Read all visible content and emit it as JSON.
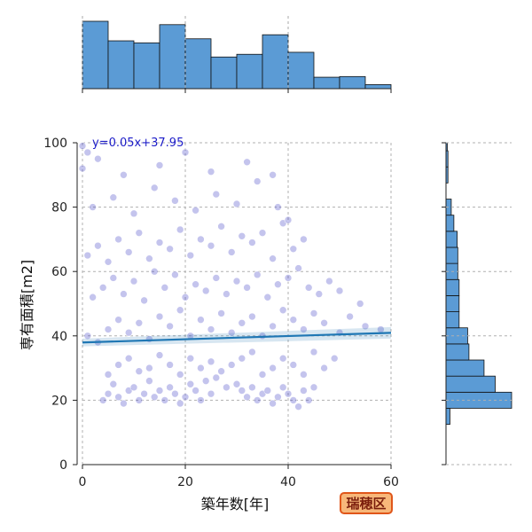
{
  "chart_data": {
    "type": "scatter",
    "xlabel": "築年数[年]",
    "ylabel": "専有面積[m2]",
    "xlim": [
      0,
      60
    ],
    "ylim": [
      0,
      100
    ],
    "xticks": [
      0,
      20,
      40,
      60
    ],
    "yticks": [
      0,
      20,
      40,
      60,
      80,
      100
    ],
    "grid": true,
    "regression": {
      "equation": "y=0.05x+37.95",
      "slope": 0.05,
      "intercept": 37.95
    },
    "badge": "瑞穂区",
    "colors": {
      "points": "#3b3bc4",
      "regression": "#1f77b4",
      "histogram": "#5b9bd5",
      "badge_bg": "#f7b77a",
      "badge_border": "#e0561a"
    },
    "x_histogram": {
      "bin_edges": [
        0,
        5,
        10,
        15,
        20,
        25,
        30,
        35,
        40,
        45,
        50,
        55,
        60
      ],
      "relative_heights": [
        1.0,
        0.71,
        0.68,
        0.95,
        0.74,
        0.47,
        0.51,
        0.8,
        0.54,
        0.17,
        0.18,
        0.06,
        0.06
      ]
    },
    "y_histogram": {
      "bin_edges": [
        12.5,
        17.5,
        22.5,
        27.5,
        32.5,
        37.5,
        42.5,
        47.5,
        52.5,
        57.5,
        62.5,
        67.5,
        72.5,
        77.5,
        82.5,
        87.5,
        92.5,
        97.5,
        100
      ],
      "relative_heights": [
        0.06,
        1.0,
        0.75,
        0.58,
        0.35,
        0.33,
        0.2,
        0.2,
        0.2,
        0.18,
        0.18,
        0.17,
        0.12,
        0.08,
        0.0,
        0.03,
        0.03,
        0.02
      ]
    },
    "points": [
      [
        4,
        20
      ],
      [
        5,
        22
      ],
      [
        6,
        25
      ],
      [
        7,
        21
      ],
      [
        8,
        19
      ],
      [
        9,
        23
      ],
      [
        10,
        24
      ],
      [
        11,
        20
      ],
      [
        12,
        22
      ],
      [
        13,
        26
      ],
      [
        14,
        21
      ],
      [
        15,
        23
      ],
      [
        16,
        20
      ],
      [
        17,
        24
      ],
      [
        18,
        22
      ],
      [
        19,
        19
      ],
      [
        20,
        21
      ],
      [
        21,
        25
      ],
      [
        22,
        23
      ],
      [
        23,
        20
      ],
      [
        24,
        26
      ],
      [
        25,
        22
      ],
      [
        26,
        27
      ],
      [
        28,
        24
      ],
      [
        30,
        25
      ],
      [
        31,
        23
      ],
      [
        32,
        21
      ],
      [
        33,
        24
      ],
      [
        34,
        20
      ],
      [
        35,
        22
      ],
      [
        36,
        23
      ],
      [
        37,
        19
      ],
      [
        38,
        21
      ],
      [
        39,
        24
      ],
      [
        40,
        22
      ],
      [
        41,
        20
      ],
      [
        42,
        18
      ],
      [
        43,
        23
      ],
      [
        44,
        20
      ],
      [
        45,
        24
      ],
      [
        5,
        28
      ],
      [
        7,
        31
      ],
      [
        9,
        33
      ],
      [
        11,
        29
      ],
      [
        13,
        30
      ],
      [
        15,
        34
      ],
      [
        17,
        31
      ],
      [
        19,
        28
      ],
      [
        21,
        33
      ],
      [
        23,
        30
      ],
      [
        25,
        32
      ],
      [
        27,
        29
      ],
      [
        29,
        31
      ],
      [
        31,
        33
      ],
      [
        33,
        35
      ],
      [
        35,
        28
      ],
      [
        37,
        30
      ],
      [
        39,
        33
      ],
      [
        41,
        31
      ],
      [
        43,
        28
      ],
      [
        45,
        35
      ],
      [
        47,
        30
      ],
      [
        49,
        33
      ],
      [
        1,
        40
      ],
      [
        3,
        38
      ],
      [
        5,
        42
      ],
      [
        7,
        45
      ],
      [
        9,
        41
      ],
      [
        11,
        44
      ],
      [
        13,
        39
      ],
      [
        15,
        46
      ],
      [
        17,
        43
      ],
      [
        19,
        48
      ],
      [
        21,
        40
      ],
      [
        23,
        45
      ],
      [
        25,
        42
      ],
      [
        27,
        47
      ],
      [
        29,
        41
      ],
      [
        31,
        44
      ],
      [
        33,
        46
      ],
      [
        35,
        40
      ],
      [
        37,
        43
      ],
      [
        39,
        48
      ],
      [
        41,
        45
      ],
      [
        43,
        42
      ],
      [
        45,
        47
      ],
      [
        47,
        44
      ],
      [
        50,
        41
      ],
      [
        52,
        46
      ],
      [
        55,
        43
      ],
      [
        58,
        42
      ],
      [
        2,
        52
      ],
      [
        4,
        55
      ],
      [
        6,
        58
      ],
      [
        8,
        53
      ],
      [
        10,
        57
      ],
      [
        12,
        51
      ],
      [
        14,
        60
      ],
      [
        16,
        55
      ],
      [
        18,
        59
      ],
      [
        20,
        52
      ],
      [
        22,
        56
      ],
      [
        24,
        54
      ],
      [
        26,
        58
      ],
      [
        28,
        53
      ],
      [
        30,
        57
      ],
      [
        32,
        55
      ],
      [
        34,
        59
      ],
      [
        36,
        52
      ],
      [
        38,
        56
      ],
      [
        40,
        58
      ],
      [
        42,
        61
      ],
      [
        44,
        55
      ],
      [
        46,
        53
      ],
      [
        48,
        57
      ],
      [
        50,
        54
      ],
      [
        54,
        50
      ],
      [
        1,
        65
      ],
      [
        3,
        68
      ],
      [
        5,
        63
      ],
      [
        7,
        70
      ],
      [
        9,
        66
      ],
      [
        11,
        72
      ],
      [
        13,
        64
      ],
      [
        15,
        69
      ],
      [
        17,
        67
      ],
      [
        19,
        73
      ],
      [
        21,
        65
      ],
      [
        23,
        70
      ],
      [
        25,
        68
      ],
      [
        27,
        74
      ],
      [
        29,
        66
      ],
      [
        31,
        71
      ],
      [
        33,
        69
      ],
      [
        35,
        72
      ],
      [
        37,
        64
      ],
      [
        39,
        75
      ],
      [
        41,
        67
      ],
      [
        43,
        70
      ],
      [
        2,
        80
      ],
      [
        6,
        83
      ],
      [
        10,
        78
      ],
      [
        14,
        86
      ],
      [
        18,
        82
      ],
      [
        22,
        79
      ],
      [
        26,
        84
      ],
      [
        30,
        81
      ],
      [
        34,
        88
      ],
      [
        38,
        80
      ],
      [
        40,
        76
      ],
      [
        0,
        92
      ],
      [
        3,
        95
      ],
      [
        8,
        90
      ],
      [
        15,
        93
      ],
      [
        20,
        97
      ],
      [
        25,
        91
      ],
      [
        32,
        94
      ],
      [
        37,
        90
      ],
      [
        0,
        99
      ],
      [
        1,
        97
      ]
    ]
  }
}
